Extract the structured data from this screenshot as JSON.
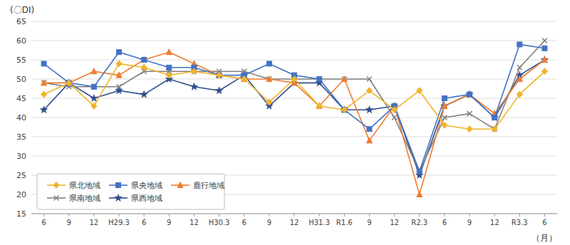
{
  "chart_data": {
    "type": "line",
    "y_label": "(〇DI)",
    "x_label": "（月）",
    "categories": [
      "6",
      "9",
      "12",
      "H29.3",
      "6",
      "9",
      "12",
      "H30.3",
      "6",
      "9",
      "12",
      "H31.3",
      "R1.6",
      "9",
      "12",
      "R2.3",
      "6",
      "9",
      "12",
      "R3.3",
      "6"
    ],
    "series": [
      {
        "name": "県北地域",
        "color": "#f0b429",
        "marker": "diamond",
        "values": [
          46,
          49,
          43,
          54,
          53,
          51,
          52,
          51,
          50,
          44,
          50,
          43,
          42,
          47,
          42,
          47,
          38,
          37,
          37,
          46,
          52
        ]
      },
      {
        "name": "県央地域",
        "color": "#4472c4",
        "marker": "square",
        "values": [
          54,
          49,
          48,
          57,
          55,
          53,
          53,
          51,
          51,
          54,
          51,
          50,
          42,
          37,
          43,
          26,
          45,
          46,
          40,
          59,
          58
        ]
      },
      {
        "name": "鹿行地域",
        "color": "#ed7d31",
        "marker": "triangle",
        "values": [
          49,
          49,
          52,
          51,
          55,
          57,
          54,
          51,
          50,
          50,
          49,
          43,
          50,
          34,
          43,
          20,
          43,
          46,
          41,
          50,
          55
        ]
      },
      {
        "name": "県南地域",
        "color": "#808080",
        "marker": "x",
        "values": [
          49,
          48,
          48,
          48,
          52,
          52,
          52,
          52,
          52,
          50,
          50,
          50,
          50,
          50,
          40,
          26,
          40,
          41,
          37,
          53,
          60
        ]
      },
      {
        "name": "県西地域",
        "color": "#2e4d8e",
        "marker": "star",
        "values": [
          42,
          49,
          45,
          47,
          46,
          50,
          48,
          47,
          51,
          43,
          49,
          49,
          42,
          42,
          43,
          25,
          43,
          46,
          40,
          51,
          55
        ]
      }
    ],
    "ylim": [
      15,
      65
    ],
    "yticks": [
      15,
      20,
      25,
      30,
      35,
      40,
      45,
      50,
      55,
      60,
      65
    ],
    "grid": true,
    "legend": "lower left"
  }
}
